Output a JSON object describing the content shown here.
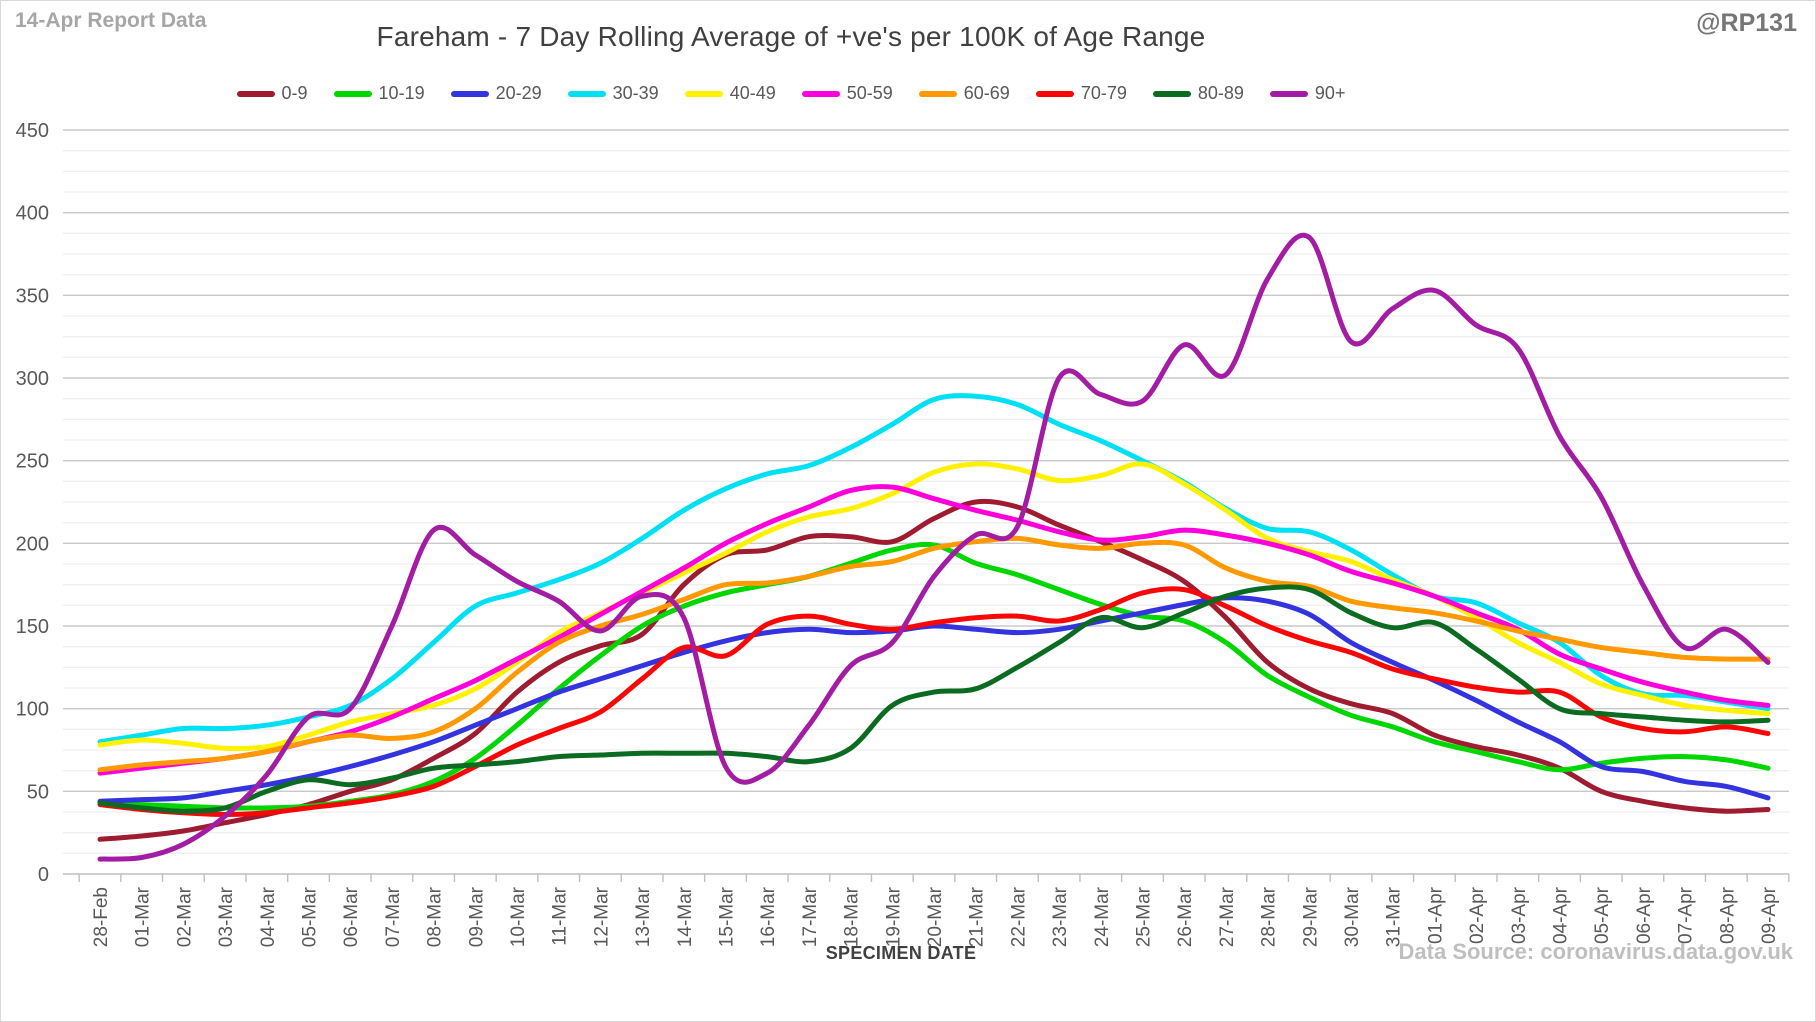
{
  "header": {
    "report_label": "14-Apr Report Data",
    "title": "Fareham - 7 Day Rolling Average of +ve's per 100K of Age Range",
    "handle": "@RP131"
  },
  "footer": {
    "xlabel": "SPECIMEN DATE",
    "source": "Data Source: coronavirus.data.gov.uk"
  },
  "style_colors": {
    "axis_text": "#595959",
    "grid_major": "#c9c9c9",
    "grid_minor": "#efefef",
    "axis_line": "#bfbfbf"
  },
  "chart_data": {
    "type": "line",
    "title": "Fareham - 7 Day Rolling Average of +ve's per 100K of Age Range",
    "xlabel": "SPECIMEN DATE",
    "ylabel": "",
    "ylim": [
      0,
      450
    ],
    "ytick_step": 50,
    "yminor_step": 12.5,
    "grid": "horizontal major+minor",
    "legend_position": "top",
    "line_style": "smooth",
    "categories": [
      "28-Feb",
      "01-Mar",
      "02-Mar",
      "03-Mar",
      "04-Mar",
      "05-Mar",
      "06-Mar",
      "07-Mar",
      "08-Mar",
      "09-Mar",
      "10-Mar",
      "11-Mar",
      "12-Mar",
      "13-Mar",
      "14-Mar",
      "15-Mar",
      "16-Mar",
      "17-Mar",
      "18-Mar",
      "19-Mar",
      "20-Mar",
      "21-Mar",
      "22-Mar",
      "23-Mar",
      "24-Mar",
      "25-Mar",
      "26-Mar",
      "27-Mar",
      "28-Mar",
      "29-Mar",
      "30-Mar",
      "31-Mar",
      "01-Apr",
      "02-Apr",
      "03-Apr",
      "04-Apr",
      "05-Apr",
      "06-Apr",
      "07-Apr",
      "08-Apr",
      "09-Apr"
    ],
    "series": [
      {
        "name": "0-9",
        "color": "#9E1B30",
        "values": [
          21,
          23,
          26,
          31,
          36,
          42,
          50,
          57,
          70,
          85,
          110,
          128,
          138,
          145,
          175,
          193,
          196,
          204,
          204,
          201,
          215,
          225,
          222,
          211,
          201,
          190,
          177,
          155,
          128,
          112,
          103,
          97,
          84,
          77,
          72,
          64,
          50,
          44,
          40,
          38,
          39
        ]
      },
      {
        "name": "10-19",
        "color": "#00D600",
        "values": [
          43,
          42,
          41,
          40,
          40,
          41,
          44,
          48,
          56,
          70,
          90,
          112,
          132,
          150,
          162,
          170,
          175,
          180,
          188,
          196,
          199,
          188,
          181,
          172,
          163,
          156,
          153,
          140,
          120,
          107,
          96,
          89,
          80,
          74,
          68,
          63,
          67,
          70,
          71,
          69,
          64
        ]
      },
      {
        "name": "20-29",
        "color": "#3333E0",
        "values": [
          44,
          45,
          46,
          50,
          54,
          59,
          65,
          72,
          80,
          90,
          100,
          110,
          118,
          126,
          134,
          141,
          146,
          148,
          146,
          147,
          150,
          148,
          146,
          148,
          153,
          158,
          163,
          167,
          165,
          157,
          140,
          128,
          117,
          105,
          92,
          80,
          65,
          62,
          56,
          53,
          46
        ]
      },
      {
        "name": "30-39",
        "color": "#00E0F5",
        "values": [
          80,
          84,
          88,
          88,
          90,
          95,
          102,
          118,
          140,
          162,
          170,
          178,
          188,
          203,
          220,
          233,
          242,
          247,
          258,
          272,
          287,
          289,
          284,
          272,
          262,
          250,
          237,
          221,
          209,
          207,
          196,
          181,
          168,
          164,
          152,
          140,
          120,
          109,
          108,
          104,
          100
        ]
      },
      {
        "name": "40-49",
        "color": "#FFF100",
        "values": [
          78,
          81,
          79,
          76,
          77,
          84,
          92,
          97,
          102,
          112,
          128,
          146,
          158,
          170,
          182,
          194,
          207,
          216,
          221,
          230,
          243,
          248,
          245,
          238,
          241,
          248,
          236,
          220,
          203,
          195,
          189,
          178,
          168,
          155,
          140,
          128,
          115,
          108,
          102,
          99,
          97
        ]
      },
      {
        "name": "50-59",
        "color": "#FF00DB",
        "values": [
          61,
          64,
          67,
          70,
          74,
          80,
          86,
          95,
          106,
          117,
          130,
          143,
          157,
          171,
          185,
          200,
          212,
          222,
          232,
          234,
          227,
          220,
          214,
          207,
          202,
          204,
          208,
          205,
          200,
          193,
          183,
          176,
          168,
          158,
          148,
          133,
          124,
          116,
          110,
          105,
          102
        ]
      },
      {
        "name": "60-69",
        "color": "#FF9900",
        "values": [
          63,
          66,
          68,
          70,
          74,
          80,
          84,
          82,
          86,
          100,
          122,
          140,
          150,
          157,
          166,
          175,
          176,
          180,
          186,
          189,
          197,
          201,
          203,
          199,
          197,
          200,
          199,
          185,
          177,
          174,
          165,
          161,
          158,
          153,
          147,
          142,
          137,
          134,
          131,
          130,
          130
        ]
      },
      {
        "name": "70-79",
        "color": "#F80707",
        "values": [
          42,
          39,
          37,
          36,
          37,
          40,
          43,
          47,
          53,
          65,
          78,
          88,
          98,
          118,
          137,
          132,
          151,
          156,
          151,
          148,
          152,
          155,
          156,
          153,
          160,
          170,
          172,
          162,
          150,
          141,
          134,
          124,
          118,
          113,
          110,
          110,
          95,
          88,
          86,
          89,
          85
        ]
      },
      {
        "name": "80-89",
        "color": "#0B6B21",
        "values": [
          43,
          40,
          38,
          40,
          50,
          57,
          54,
          58,
          64,
          66,
          68,
          71,
          72,
          73,
          73,
          73,
          71,
          68,
          76,
          102,
          110,
          112,
          125,
          140,
          155,
          149,
          158,
          168,
          173,
          172,
          158,
          149,
          152,
          136,
          118,
          100,
          97,
          95,
          93,
          92,
          93
        ]
      },
      {
        "name": "90+",
        "color": "#A31DA4",
        "values": [
          9,
          10,
          18,
          35,
          60,
          95,
          100,
          150,
          208,
          193,
          177,
          165,
          147,
          168,
          155,
          65,
          61,
          90,
          126,
          140,
          180,
          205,
          210,
          300,
          290,
          286,
          320,
          302,
          360,
          385,
          322,
          342,
          353,
          332,
          318,
          265,
          228,
          175,
          137,
          148,
          128
        ]
      }
    ]
  }
}
